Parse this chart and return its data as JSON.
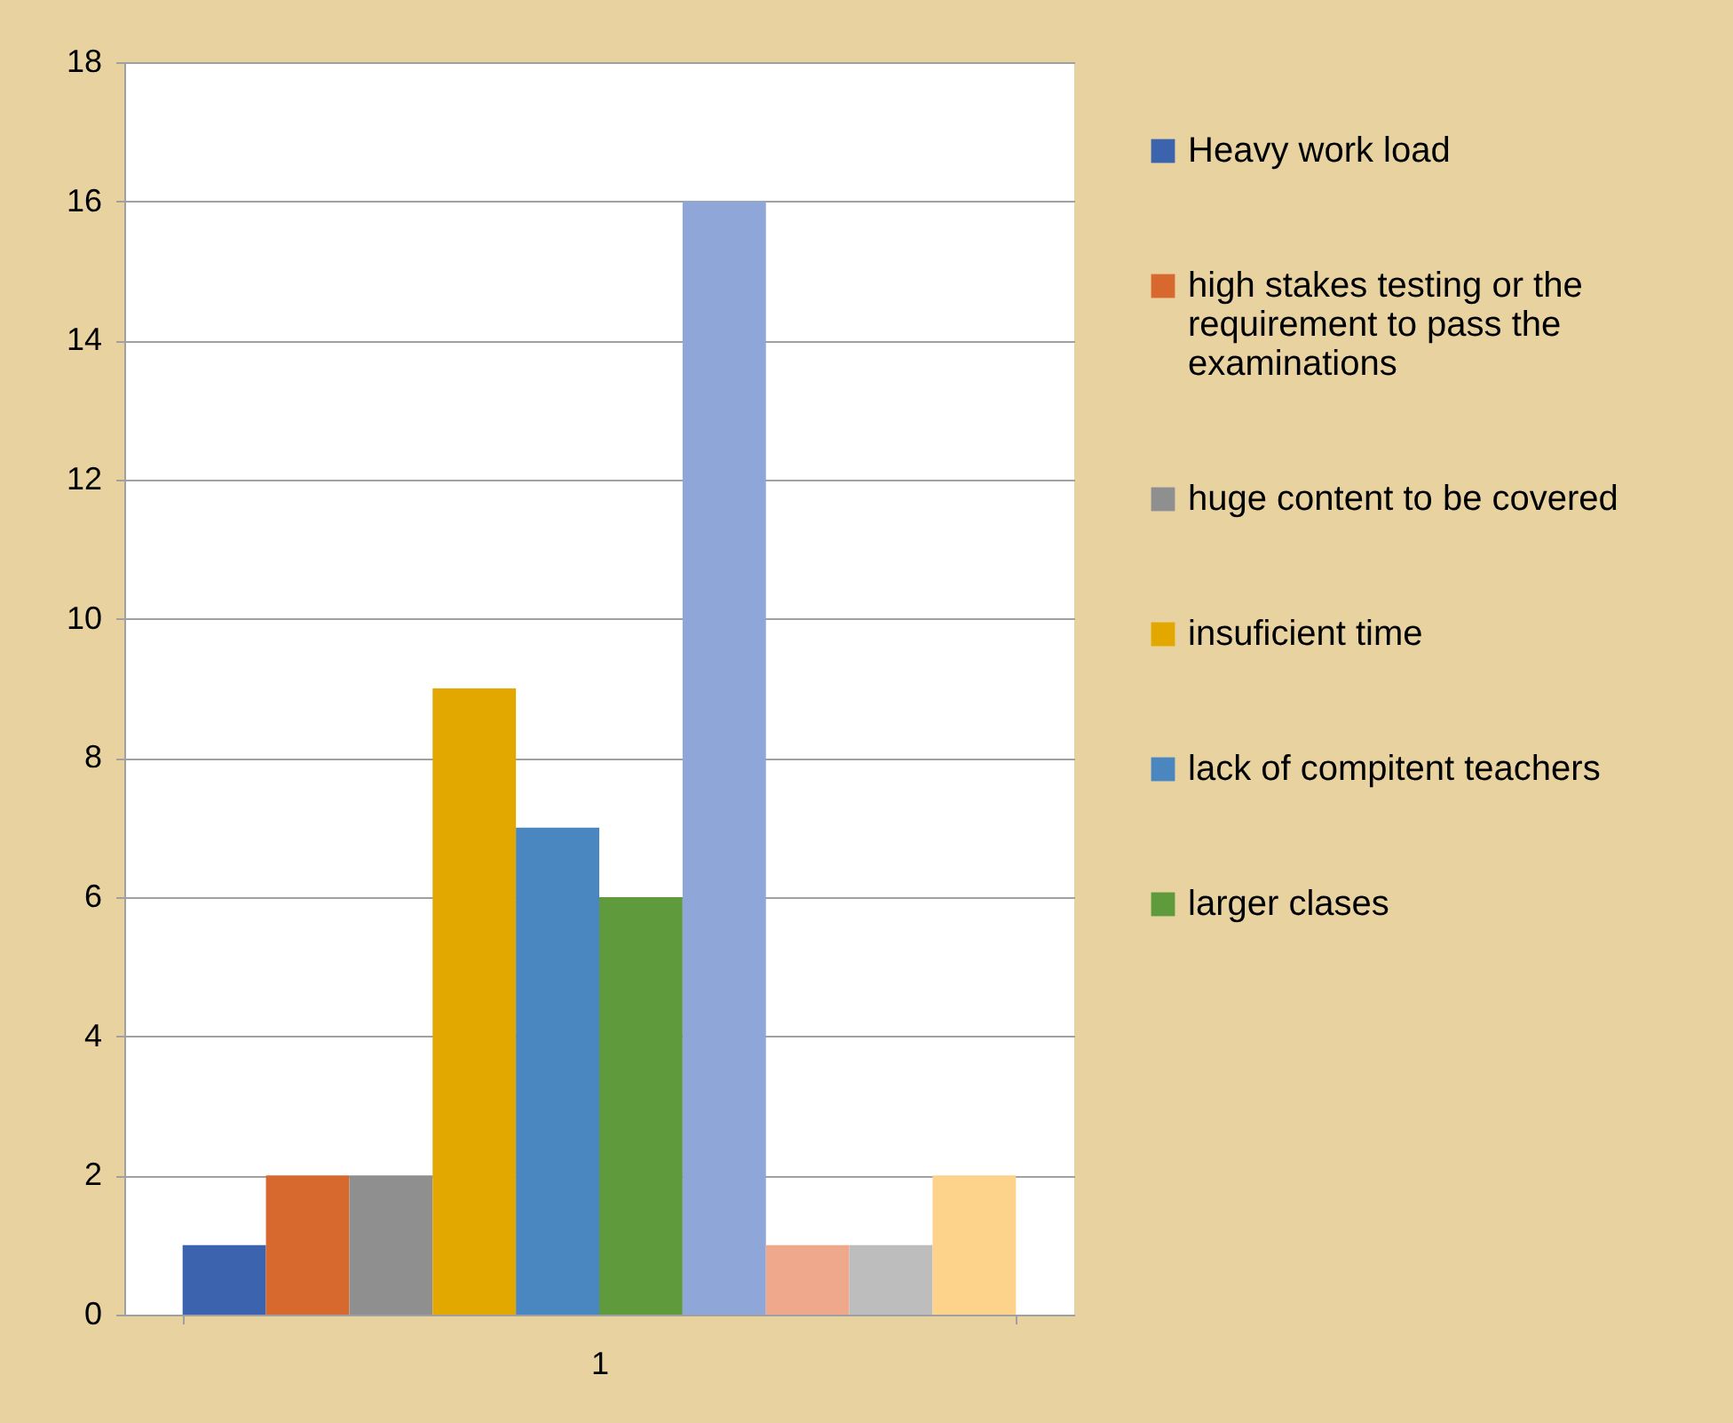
{
  "chart_data": {
    "type": "bar",
    "categories": [
      "1"
    ],
    "series": [
      {
        "name": "Heavy work load",
        "color": "#3c64ae",
        "values": [
          1
        ]
      },
      {
        "name": "high stakes testing or the requirement to pass the examinations",
        "color": "#d8692e",
        "values": [
          2
        ]
      },
      {
        "name": "huge content to be covered",
        "color": "#8f8f8f",
        "values": [
          2
        ]
      },
      {
        "name": "insuficient time",
        "color": "#e3a800",
        "values": [
          9
        ]
      },
      {
        "name": "lack of compitent teachers",
        "color": "#4a87c0",
        "values": [
          7
        ]
      },
      {
        "name": "larger clases",
        "color": "#5f9a3c",
        "values": [
          6
        ]
      },
      {
        "color": "#8fa6d8",
        "values": [
          16
        ]
      },
      {
        "color": "#f0a88c",
        "values": [
          1
        ]
      },
      {
        "color": "#bdbdbd",
        "values": [
          1
        ]
      },
      {
        "color": "#fdd38b",
        "values": [
          2
        ]
      }
    ],
    "ylim": [
      0,
      18
    ],
    "yticks": [
      0,
      2,
      4,
      6,
      8,
      10,
      12,
      14,
      16,
      18
    ],
    "grid": "y",
    "legend": "right"
  }
}
